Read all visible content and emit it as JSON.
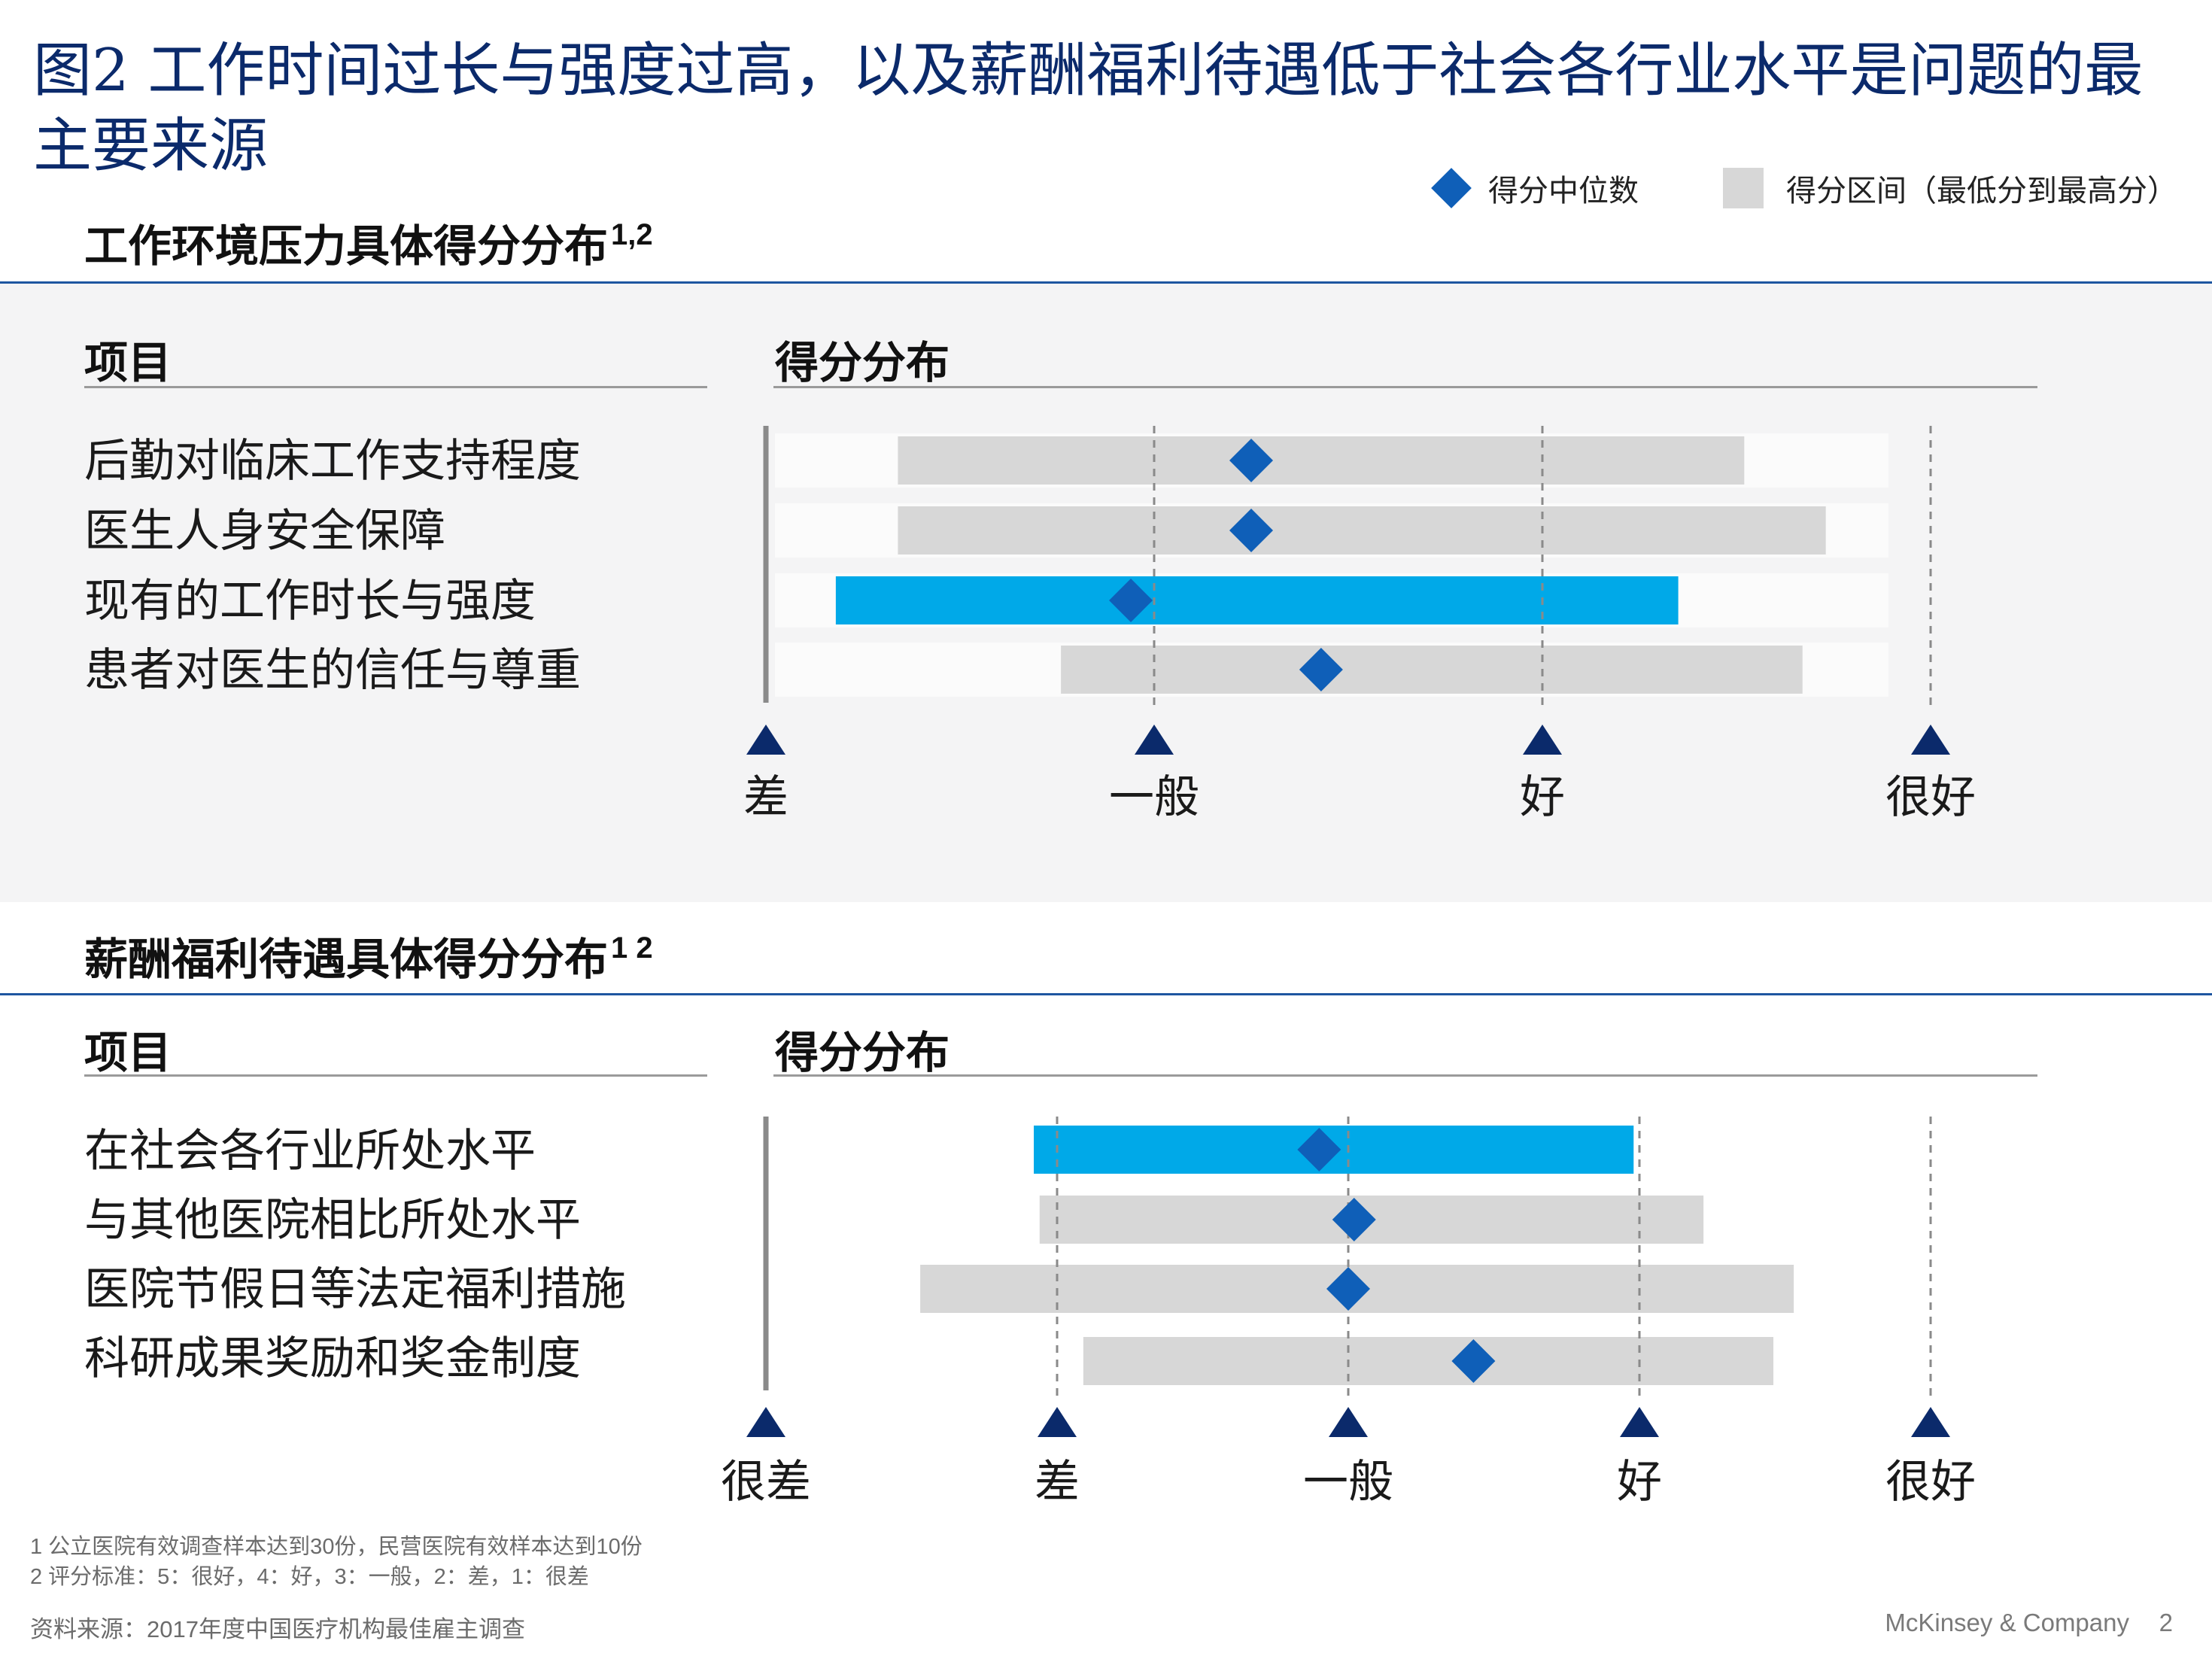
{
  "title": "图2 工作时间过长与强度过高，以及薪酬福利待遇低于社会各行业水平是问题的最主要来源",
  "legend": {
    "median_label": "得分中位数",
    "range_label": "得分区间（最低分到最高分）"
  },
  "colors": {
    "title": "#0b2a6b",
    "median": "#0f5fb8",
    "range": "#d7d7d7",
    "highlight": "#00a9e8",
    "tick": "#0b2a6b",
    "rule": "#1e56a0"
  },
  "chart_data": [
    {
      "type": "range",
      "title": "工作环境压力具体得分分布",
      "title_sup": "1,2",
      "item_header": "项目",
      "score_header": "得分分布",
      "xlim": [
        2,
        5
      ],
      "ticks": [
        {
          "value": 2,
          "label": "差"
        },
        {
          "value": 3,
          "label": "一般"
        },
        {
          "value": 4,
          "label": "好"
        },
        {
          "value": 5,
          "label": "很好"
        }
      ],
      "rows": [
        {
          "label": "后勤对临床工作支持程度",
          "min": 2.34,
          "max": 4.52,
          "median": 3.25,
          "highlight": false
        },
        {
          "label": "医生人身安全保障",
          "min": 2.34,
          "max": 4.73,
          "median": 3.25,
          "highlight": false
        },
        {
          "label": "现有的工作时长与强度",
          "min": 2.18,
          "max": 4.35,
          "median": 2.94,
          "highlight": true
        },
        {
          "label": "患者对医生的信任与尊重",
          "min": 2.76,
          "max": 4.67,
          "median": 3.43,
          "highlight": false
        }
      ]
    },
    {
      "type": "range",
      "title": "薪酬福利待遇具体得分分布",
      "title_sup": "1 2",
      "item_header": "项目",
      "score_header": "得分分布",
      "xlim": [
        1,
        5
      ],
      "ticks": [
        {
          "value": 1,
          "label": "很差"
        },
        {
          "value": 2,
          "label": "差"
        },
        {
          "value": 3,
          "label": "一般"
        },
        {
          "value": 4,
          "label": "好"
        },
        {
          "value": 5,
          "label": "很好"
        }
      ],
      "rows": [
        {
          "label": "在社会各行业所处水平",
          "min": 1.92,
          "max": 3.98,
          "median": 2.9,
          "highlight": true
        },
        {
          "label": "与其他医院相比所处水平",
          "min": 1.94,
          "max": 4.22,
          "median": 3.02,
          "highlight": false
        },
        {
          "label": "医院节假日等法定福利措施",
          "min": 1.53,
          "max": 4.53,
          "median": 3.0,
          "highlight": false
        },
        {
          "label": "科研成果奖励和奖金制度",
          "min": 2.09,
          "max": 4.46,
          "median": 3.43,
          "highlight": false
        }
      ]
    }
  ],
  "footnotes": [
    "1 公立医院有效调查样本达到30份，民营医院有效样本达到10份",
    "2 评分标准：5：很好，4：好，3：一般，2：差，1：很差"
  ],
  "source": "资料来源：2017年度中国医疗机构最佳雇主调查",
  "brand": "McKinsey & Company",
  "page_number": "2"
}
